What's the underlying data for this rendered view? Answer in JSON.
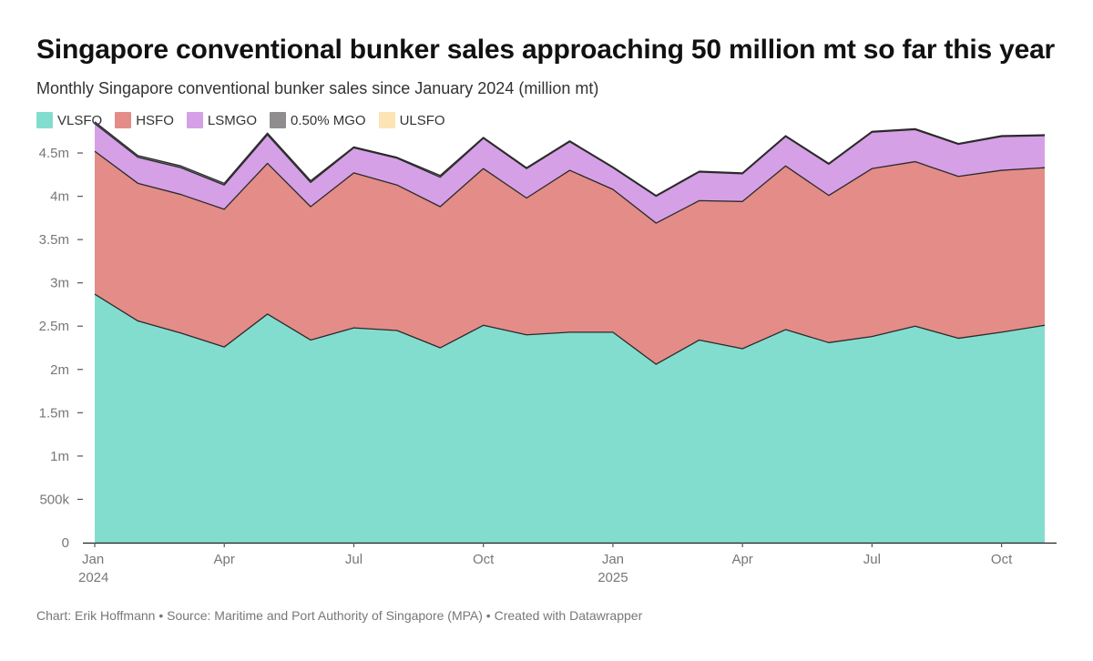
{
  "header": {
    "title": "Singapore conventional bunker sales approaching 50 million mt so far this year",
    "subtitle": "Monthly Singapore conventional bunker sales since January 2024 (million mt)"
  },
  "footer": {
    "text": "Chart: Erik Hoffmann • Source: Maritime and Port Authority of Singapore (MPA) • Created with Datawrapper"
  },
  "chart_data": {
    "type": "area",
    "stacked": true,
    "x": [
      "2024-01",
      "2024-02",
      "2024-03",
      "2024-04",
      "2024-05",
      "2024-06",
      "2024-07",
      "2024-08",
      "2024-09",
      "2024-10",
      "2024-11",
      "2024-12",
      "2025-01",
      "2025-02",
      "2025-03",
      "2025-04",
      "2025-05",
      "2025-06",
      "2025-07",
      "2025-08",
      "2025-09",
      "2025-10",
      "2025-11"
    ],
    "series": [
      {
        "name": "VLSFO",
        "color": "#83ddcf",
        "values": [
          2.87,
          2.56,
          2.42,
          2.26,
          2.64,
          2.34,
          2.48,
          2.45,
          2.25,
          2.51,
          2.4,
          2.43,
          2.43,
          2.06,
          2.34,
          2.24,
          2.46,
          2.31,
          2.38,
          2.5,
          2.36,
          2.43,
          2.51
        ]
      },
      {
        "name": "HSFO",
        "color": "#e48c88",
        "values": [
          1.65,
          1.59,
          1.6,
          1.59,
          1.74,
          1.54,
          1.79,
          1.68,
          1.63,
          1.81,
          1.58,
          1.87,
          1.65,
          1.63,
          1.61,
          1.7,
          1.89,
          1.7,
          1.94,
          1.9,
          1.87,
          1.87,
          1.82
        ]
      },
      {
        "name": "LSMGO",
        "color": "#d5a0e6",
        "values": [
          0.32,
          0.3,
          0.31,
          0.28,
          0.33,
          0.28,
          0.29,
          0.31,
          0.34,
          0.35,
          0.34,
          0.33,
          0.25,
          0.31,
          0.33,
          0.32,
          0.34,
          0.36,
          0.42,
          0.37,
          0.37,
          0.39,
          0.37
        ]
      },
      {
        "name": "0.50% MGO",
        "color": "#8f8d8d",
        "values": [
          0.02,
          0.02,
          0.02,
          0.02,
          0.02,
          0.02,
          0.01,
          0.01,
          0.02,
          0.01,
          0.01,
          0.01,
          0.01,
          0.01,
          0.01,
          0.01,
          0.01,
          0.01,
          0.01,
          0.01,
          0.01,
          0.01,
          0.01
        ]
      },
      {
        "name": "ULSFO",
        "color": "#fde4b4",
        "values": [
          0,
          0,
          0,
          0,
          0,
          0,
          0,
          0,
          0,
          0,
          0,
          0,
          0,
          0,
          0,
          0,
          0,
          0,
          0,
          0,
          0,
          0,
          0
        ]
      }
    ],
    "ylim": [
      0,
      4.9
    ],
    "y_ticks": [
      {
        "value": 0,
        "label": "0"
      },
      {
        "value": 0.5,
        "label": "500k"
      },
      {
        "value": 1,
        "label": "1m"
      },
      {
        "value": 1.5,
        "label": "1.5m"
      },
      {
        "value": 2,
        "label": "2m"
      },
      {
        "value": 2.5,
        "label": "2.5m"
      },
      {
        "value": 3,
        "label": "3m"
      },
      {
        "value": 3.5,
        "label": "3.5m"
      },
      {
        "value": 4,
        "label": "4m"
      },
      {
        "value": 4.5,
        "label": "4.5m"
      }
    ],
    "x_ticks": [
      {
        "index": 0,
        "label": "Jan",
        "year": "2024"
      },
      {
        "index": 3,
        "label": "Apr",
        "year": ""
      },
      {
        "index": 6,
        "label": "Jul",
        "year": ""
      },
      {
        "index": 9,
        "label": "Oct",
        "year": ""
      },
      {
        "index": 12,
        "label": "Jan",
        "year": "2025"
      },
      {
        "index": 15,
        "label": "Apr",
        "year": ""
      },
      {
        "index": 18,
        "label": "Jul",
        "year": ""
      },
      {
        "index": 21,
        "label": "Oct",
        "year": ""
      }
    ],
    "legend_position": "top-left"
  }
}
